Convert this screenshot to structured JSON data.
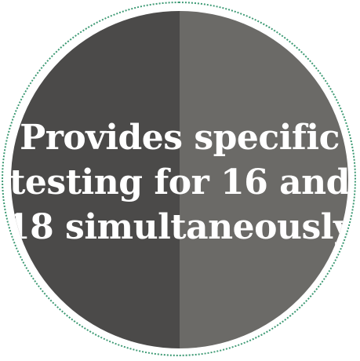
{
  "badge": {
    "lines": [
      "Provides specific",
      "testing for 16 and",
      "18 simultaneously"
    ],
    "colors": {
      "left_half": "#4b4a49",
      "right_half": "#6b6a67",
      "text": "#ffffff",
      "dotted_ring": "#3d9a74",
      "background": "#ffffff"
    }
  }
}
